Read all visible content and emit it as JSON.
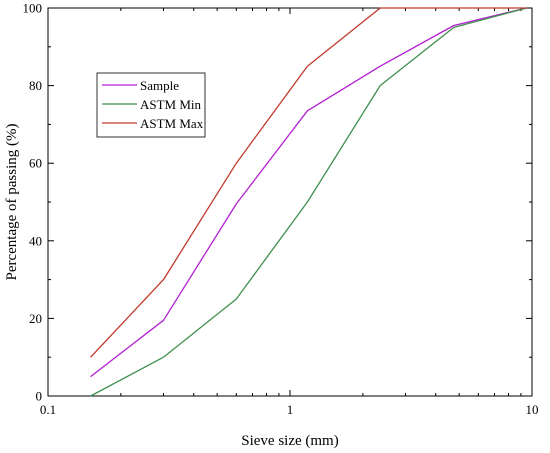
{
  "chart_data": {
    "type": "line",
    "title": "",
    "xlabel": "Sieve size (mm)",
    "ylabel": "Percentage of passing (%)",
    "xscale": "log",
    "xlim": [
      0.1,
      10
    ],
    "ylim": [
      0,
      100
    ],
    "xticks": [
      0.1,
      1,
      10
    ],
    "xtick_labels": [
      "0.1",
      "1",
      "10"
    ],
    "yticks": [
      0,
      20,
      40,
      60,
      80,
      100
    ],
    "ytick_labels": [
      "0",
      "20",
      "40",
      "60",
      "80",
      "100"
    ],
    "grid": false,
    "legend_position": "upper-left",
    "x": [
      0.15,
      0.3,
      0.6,
      1.18,
      2.36,
      4.75,
      9.5
    ],
    "series": [
      {
        "name": "Sample",
        "color": "#b31fd1",
        "values": [
          5,
          19.5,
          49.5,
          73.5,
          85,
          95.5,
          100
        ]
      },
      {
        "name": "ASTM Min",
        "color": "#3f8f4f",
        "values": [
          0,
          10,
          25,
          50,
          80,
          95,
          100
        ]
      },
      {
        "name": "ASTM Max",
        "color": "#c0392b",
        "values": [
          10,
          30,
          60,
          85,
          100,
          100,
          100
        ]
      }
    ]
  }
}
